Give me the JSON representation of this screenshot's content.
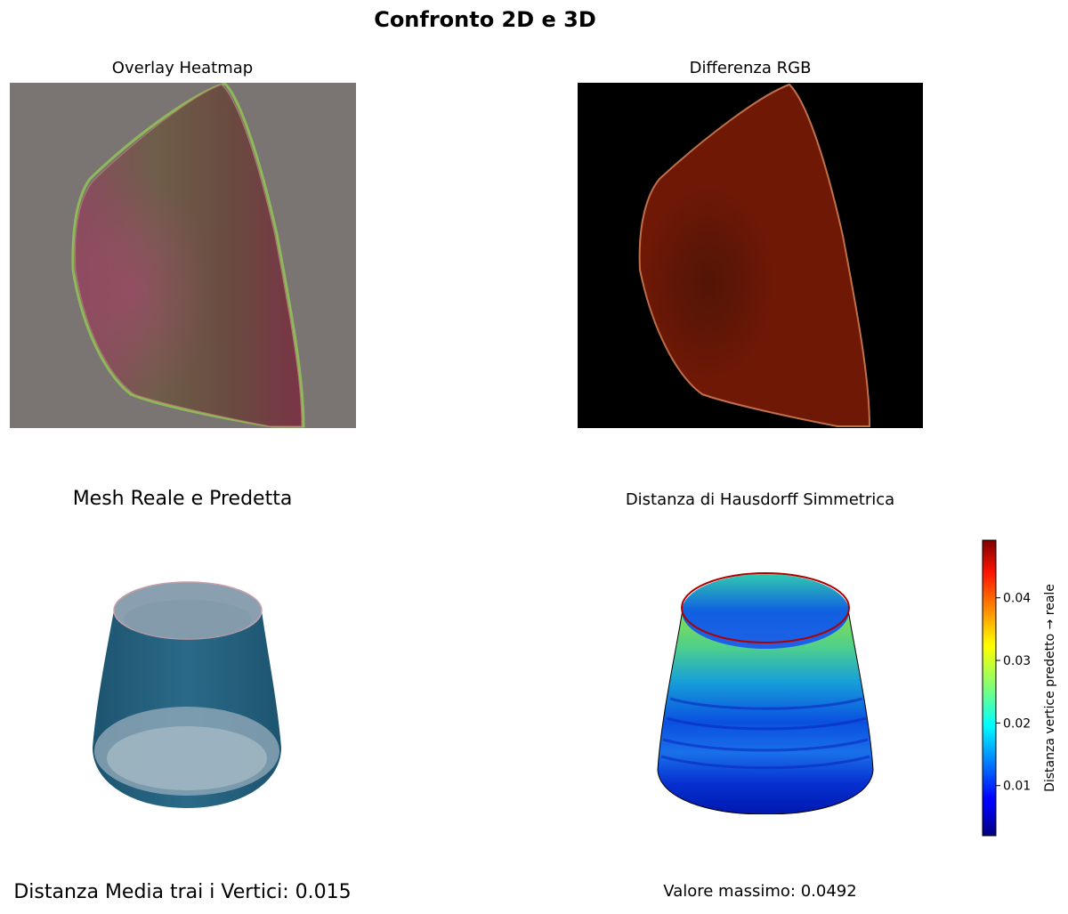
{
  "main_title": "Confronto 2D e 3D",
  "panels": {
    "overlay": {
      "title": "Overlay Heatmap"
    },
    "difference": {
      "title": "Differenza RGB"
    },
    "mesh": {
      "title": "Mesh Reale e Predetta",
      "caption": "Distanza Media trai i Vertici: 0.015"
    },
    "hausdorff": {
      "title": "Distanza di Hausdorff Simmetrica",
      "caption": "Valore massimo: 0.0492"
    }
  },
  "chart_data": [
    {
      "type": "heatmap",
      "title": "Overlay Heatmap",
      "axes": "off",
      "colors": {
        "background": "#7a7472",
        "shape": "#6e5a4e",
        "edge_green": "#8fb85a",
        "edge_magenta": "#9a3a5a"
      }
    },
    {
      "type": "heatmap",
      "title": "Differenza RGB",
      "axes": "off",
      "colors": {
        "background": "#000000",
        "shape": "#701806",
        "edge": "#c0704a"
      }
    },
    {
      "type": "other",
      "title": "Mesh Reale e Predetta",
      "axes": "off",
      "colors": {
        "mesh": "#23627e",
        "inner": "#9cb2bf"
      }
    },
    {
      "type": "heatmap",
      "title": "Distanza di Hausdorff Simmetrica",
      "axes": "off",
      "colormap": "jet",
      "colorbar": {
        "label": "Distanza vertice predetto → reale",
        "range": [
          0.002,
          0.0492
        ],
        "ticks": [
          0.01,
          0.02,
          0.03,
          0.04
        ],
        "tick_labels": [
          "0.01",
          "0.02",
          "0.03",
          "0.04"
        ]
      },
      "max_value": 0.0492
    }
  ]
}
